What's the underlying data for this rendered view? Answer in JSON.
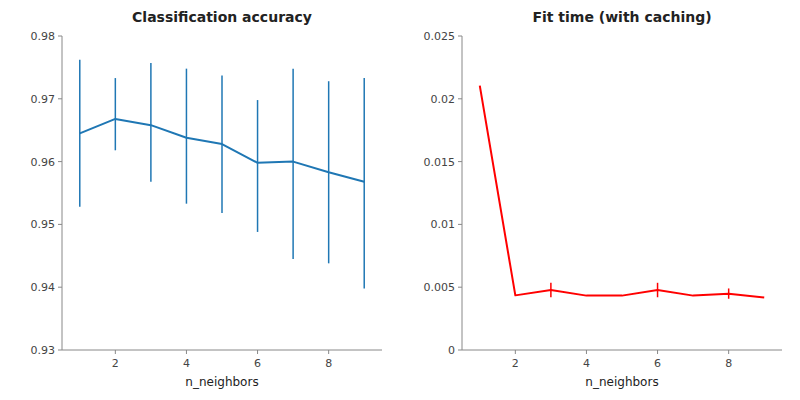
{
  "chart_data": [
    {
      "type": "line",
      "title": "Classification accuracy",
      "xlabel": "n_neighbors",
      "x": [
        1,
        2,
        3,
        4,
        5,
        6,
        7,
        8,
        9
      ],
      "values": [
        0.9645,
        0.9668,
        0.9658,
        0.9638,
        0.9628,
        0.9598,
        0.96,
        0.9583,
        0.9568
      ],
      "upper": [
        0.9762,
        0.9733,
        0.9757,
        0.9748,
        0.9737,
        0.9698,
        0.9748,
        0.9728,
        0.9733
      ],
      "lower": [
        0.9528,
        0.9618,
        0.9568,
        0.9533,
        0.9518,
        0.9488,
        0.9445,
        0.9438,
        0.9398
      ],
      "color": "#1f77b4",
      "xlim": [
        0.5,
        9.5
      ],
      "xticks": [
        2,
        4,
        6,
        8
      ],
      "ylim": [
        0.93,
        0.98
      ],
      "yticks": [
        0.93,
        0.94,
        0.95,
        0.96,
        0.97,
        0.98
      ],
      "grid": false
    },
    {
      "type": "line",
      "title": "Fit time (with caching)",
      "xlabel": "n_neighbors",
      "x": [
        1,
        2,
        3,
        4,
        5,
        6,
        7,
        8,
        9
      ],
      "values": [
        0.02105,
        0.00435,
        0.00478,
        0.00433,
        0.00433,
        0.00478,
        0.00433,
        0.00448,
        0.00418
      ],
      "upper": [
        0.02105,
        0.00435,
        0.00535,
        0.00433,
        0.00433,
        0.00535,
        0.00433,
        0.0049,
        0.00418
      ],
      "lower": [
        0.02105,
        0.00435,
        0.0042,
        0.00433,
        0.00433,
        0.0042,
        0.00433,
        0.00408,
        0.00418
      ],
      "color": "#ff0000",
      "xlim": [
        0.5,
        9.5
      ],
      "xticks": [
        2,
        4,
        6,
        8
      ],
      "ylim": [
        0,
        0.025
      ],
      "yticks": [
        0,
        0.005,
        0.01,
        0.015,
        0.02,
        0.025
      ],
      "grid": false
    }
  ]
}
